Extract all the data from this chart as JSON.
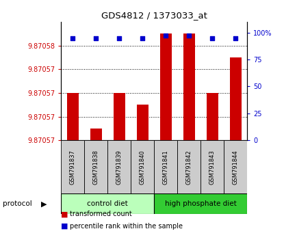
{
  "title": "GDS4812 / 1373033_at",
  "samples": [
    "GSM791837",
    "GSM791838",
    "GSM791839",
    "GSM791840",
    "GSM791841",
    "GSM791842",
    "GSM791843",
    "GSM791844"
  ],
  "transformed_count": [
    9.870574,
    9.870571,
    9.870574,
    9.870573,
    9.870579,
    9.870579,
    9.870574,
    9.870577
  ],
  "percentile_rank": [
    95,
    95,
    95,
    95,
    97,
    97,
    95,
    95
  ],
  "y_min": 9.87057,
  "y_max": 9.87058,
  "y_ticks": [
    9.87057,
    9.870572,
    9.870574,
    9.870576,
    9.870578
  ],
  "y_tick_labels": [
    "9.87057",
    "9.87057",
    "9.87057",
    "9.87057",
    "9.87058"
  ],
  "right_y_ticks": [
    0,
    25,
    50,
    75,
    100
  ],
  "right_y_labels": [
    "0",
    "25",
    "50",
    "75",
    "100%"
  ],
  "bar_color": "#cc0000",
  "dot_color": "#0000cc",
  "sample_box_color": "#cccccc",
  "control_diet_color": "#bbffbb",
  "high_phosphate_color": "#33cc33",
  "legend_red_label": "transformed count",
  "legend_blue_label": "percentile rank within the sample",
  "protocol_label": "protocol",
  "groups": [
    {
      "label": "control diet",
      "start": 0,
      "end": 4,
      "color": "#bbffbb"
    },
    {
      "label": "high phosphate diet",
      "start": 4,
      "end": 8,
      "color": "#33cc33"
    }
  ]
}
